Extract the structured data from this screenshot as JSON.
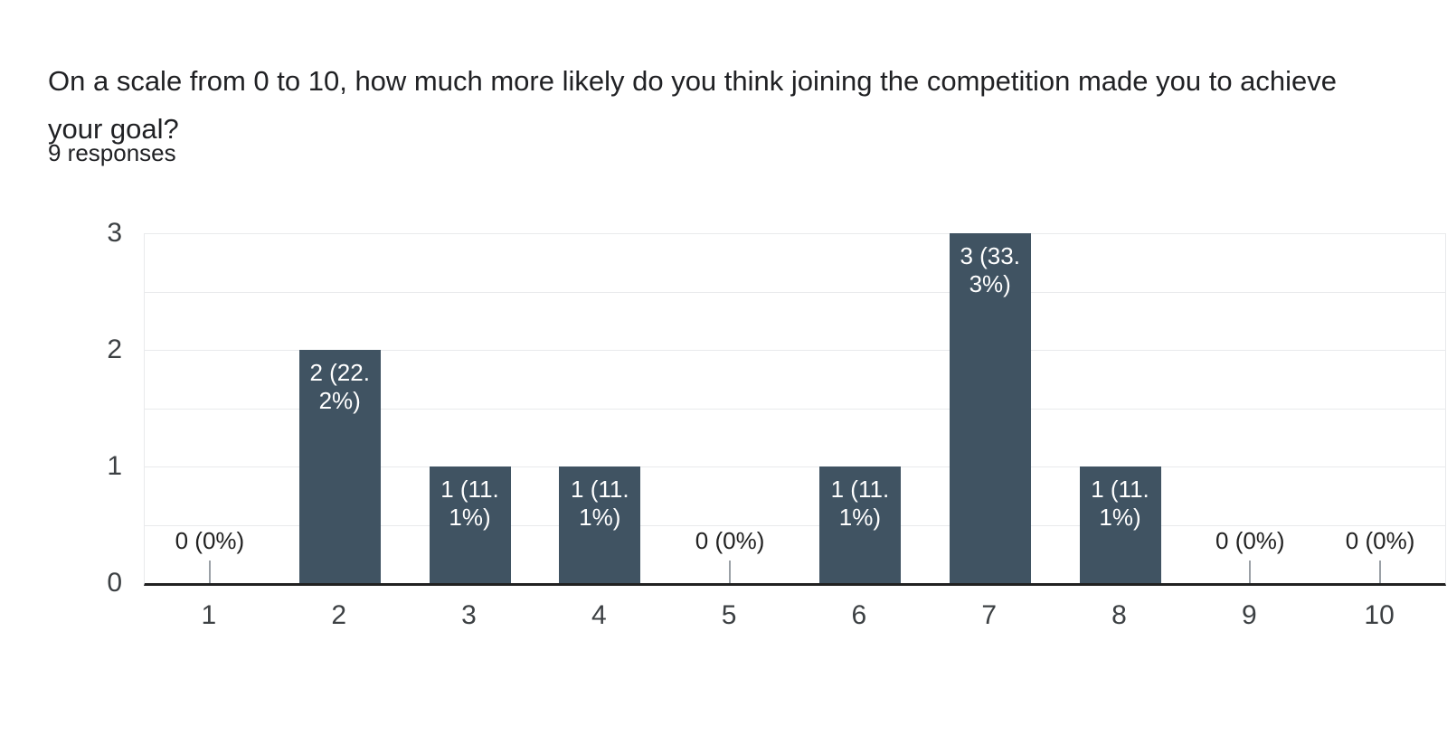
{
  "header": {
    "title": "On a scale from 0 to 10, how much more likely do you think joining the competition made you to achieve your goal?",
    "subtitle": "9 responses"
  },
  "chart_data": {
    "type": "bar",
    "title": "On a scale from 0 to 10, how much more likely do you think joining the competition made you to achieve your goal?",
    "subtitle": "9 responses",
    "categories": [
      "1",
      "2",
      "3",
      "4",
      "5",
      "6",
      "7",
      "8",
      "9",
      "10"
    ],
    "values": [
      0,
      2,
      1,
      1,
      0,
      1,
      3,
      1,
      0,
      0
    ],
    "labels": [
      "0 (0%)",
      "2 (22.2%)",
      "1 (11.1%)",
      "1 (11.1%)",
      "0 (0%)",
      "1 (11.1%)",
      "3 (33.3%)",
      "1 (11.1%)",
      "0 (0%)",
      "0 (0%)"
    ],
    "label_lines": [
      [
        "0 (0%)"
      ],
      [
        "2 (22.",
        "2%)"
      ],
      [
        "1 (11.",
        "1%)"
      ],
      [
        "1 (11.",
        "1%)"
      ],
      [
        "0 (0%)"
      ],
      [
        "1 (11.",
        "1%)"
      ],
      [
        "3 (33.",
        "3%)"
      ],
      [
        "1 (11.",
        "1%)"
      ],
      [
        "0 (0%)"
      ],
      [
        "0 (0%)"
      ]
    ],
    "xlabel": "",
    "ylabel": "",
    "y_ticks": [
      "0",
      "1",
      "2",
      "3"
    ],
    "ylim": [
      0,
      3
    ],
    "grid_step": 0.5,
    "grid": "horizontal",
    "legend_position": "none",
    "colors": {
      "bar": "#405362",
      "bar_label": "#ffffff",
      "zero_label": "#212121",
      "zero_tick": "#9aa0a6",
      "axis_label": "#3c4043",
      "gridline": "#e9eaec",
      "baseline": "#212121",
      "background": "#ffffff"
    }
  }
}
